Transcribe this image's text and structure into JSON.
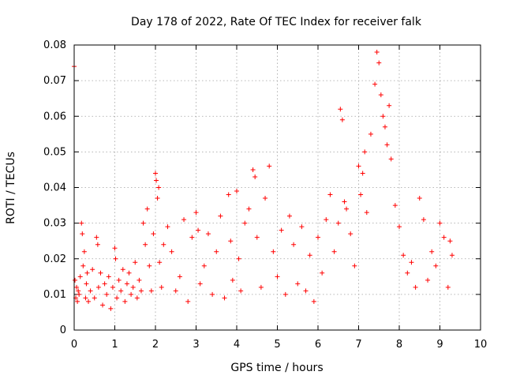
{
  "chart_data": {
    "type": "scatter",
    "title": "Day 178 of 2022, Rate Of TEC Index for receiver falk",
    "xlabel": "GPS time / hours",
    "ylabel": "ROTI / TECUs",
    "xlim": [
      0,
      10
    ],
    "ylim": [
      0,
      0.08
    ],
    "xticks": [
      "0",
      "1",
      "2",
      "3",
      "4",
      "5",
      "6",
      "7",
      "8",
      "9",
      "10"
    ],
    "yticks": [
      "0",
      "0.01",
      "0.02",
      "0.03",
      "0.04",
      "0.05",
      "0.06",
      "0.07",
      "0.08"
    ],
    "grid": true,
    "marker": "plus",
    "color": "#ff0000",
    "series": [
      {
        "name": "ROTI",
        "x": [
          0.0,
          0.02,
          0.04,
          0.06,
          0.08,
          0.1,
          0.12,
          0.15,
          0.18,
          0.2,
          0.22,
          0.25,
          0.28,
          0.3,
          0.32,
          0.35,
          0.4,
          0.45,
          0.5,
          0.55,
          0.58,
          0.6,
          0.65,
          0.7,
          0.75,
          0.8,
          0.85,
          0.9,
          0.95,
          1.0,
          1.02,
          1.05,
          1.1,
          1.15,
          1.2,
          1.25,
          1.3,
          1.35,
          1.4,
          1.45,
          1.5,
          1.55,
          1.6,
          1.65,
          1.7,
          1.75,
          1.8,
          1.85,
          1.9,
          1.95,
          2.0,
          2.02,
          2.05,
          2.08,
          2.1,
          2.15,
          2.2,
          2.3,
          2.4,
          2.5,
          2.6,
          2.7,
          2.8,
          2.9,
          3.0,
          3.05,
          3.1,
          3.2,
          3.3,
          3.4,
          3.5,
          3.6,
          3.7,
          3.8,
          3.85,
          3.9,
          4.0,
          4.05,
          4.1,
          4.2,
          4.3,
          4.4,
          4.45,
          4.5,
          4.6,
          4.7,
          4.8,
          4.9,
          5.0,
          5.1,
          5.2,
          5.3,
          5.4,
          5.5,
          5.6,
          5.7,
          5.8,
          5.9,
          6.0,
          6.1,
          6.2,
          6.3,
          6.4,
          6.5,
          6.55,
          6.6,
          6.65,
          6.7,
          6.8,
          6.9,
          7.0,
          7.05,
          7.1,
          7.15,
          7.2,
          7.3,
          7.4,
          7.45,
          7.5,
          7.55,
          7.6,
          7.65,
          7.7,
          7.75,
          7.8,
          7.9,
          8.0,
          8.1,
          8.2,
          8.3,
          8.4,
          8.5,
          8.6,
          8.7,
          8.8,
          8.9,
          9.0,
          9.1,
          9.2,
          9.25,
          9.3
        ],
        "y": [
          0.074,
          0.014,
          0.009,
          0.012,
          0.008,
          0.011,
          0.01,
          0.015,
          0.03,
          0.027,
          0.018,
          0.022,
          0.009,
          0.013,
          0.016,
          0.008,
          0.011,
          0.017,
          0.009,
          0.026,
          0.024,
          0.012,
          0.016,
          0.007,
          0.013,
          0.01,
          0.015,
          0.006,
          0.012,
          0.023,
          0.02,
          0.009,
          0.014,
          0.011,
          0.017,
          0.008,
          0.013,
          0.016,
          0.01,
          0.012,
          0.019,
          0.009,
          0.014,
          0.011,
          0.03,
          0.024,
          0.034,
          0.018,
          0.011,
          0.027,
          0.044,
          0.042,
          0.037,
          0.04,
          0.019,
          0.012,
          0.024,
          0.029,
          0.022,
          0.011,
          0.015,
          0.031,
          0.008,
          0.026,
          0.033,
          0.028,
          0.013,
          0.018,
          0.027,
          0.01,
          0.022,
          0.032,
          0.009,
          0.038,
          0.025,
          0.014,
          0.039,
          0.02,
          0.011,
          0.03,
          0.034,
          0.045,
          0.043,
          0.026,
          0.012,
          0.037,
          0.046,
          0.022,
          0.015,
          0.028,
          0.01,
          0.032,
          0.024,
          0.013,
          0.029,
          0.011,
          0.021,
          0.008,
          0.026,
          0.016,
          0.031,
          0.038,
          0.022,
          0.03,
          0.062,
          0.059,
          0.036,
          0.034,
          0.027,
          0.018,
          0.046,
          0.038,
          0.044,
          0.05,
          0.033,
          0.055,
          0.069,
          0.078,
          0.075,
          0.066,
          0.06,
          0.057,
          0.052,
          0.063,
          0.048,
          0.035,
          0.029,
          0.021,
          0.016,
          0.019,
          0.012,
          0.037,
          0.031,
          0.014,
          0.022,
          0.018,
          0.03,
          0.026,
          0.012,
          0.025,
          0.021
        ]
      }
    ]
  }
}
